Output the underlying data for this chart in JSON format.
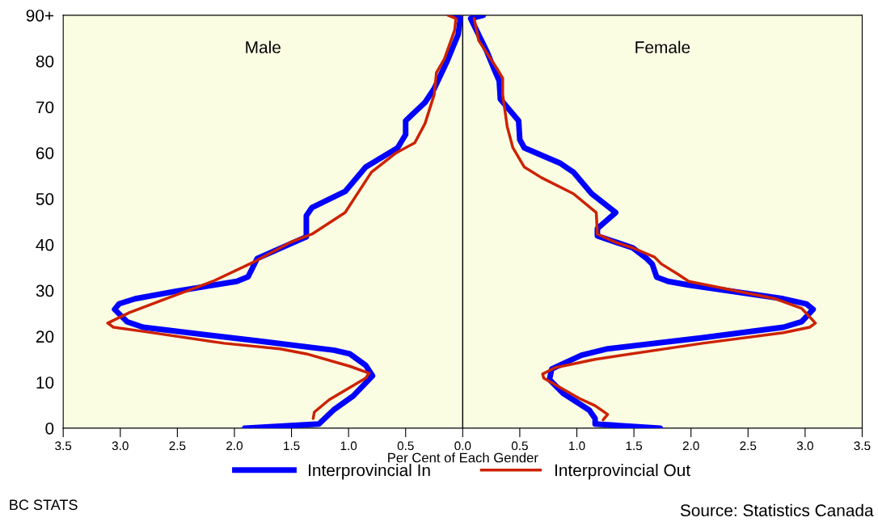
{
  "chart_data": {
    "type": "line",
    "xlabel": "Per Cent of Each Gender",
    "xlim": [
      -3.5,
      3.5
    ],
    "xticks": [
      {
        "value": -3.5,
        "label": "3.5"
      },
      {
        "value": -3.0,
        "label": "3.0"
      },
      {
        "value": -2.5,
        "label": "2.5"
      },
      {
        "value": -2.0,
        "label": "2.0"
      },
      {
        "value": -1.5,
        "label": "1.5"
      },
      {
        "value": -1.0,
        "label": "1.0"
      },
      {
        "value": -0.5,
        "label": "0.5"
      },
      {
        "value": 0,
        "label": "0.0"
      },
      {
        "value": 0.5,
        "label": "0.5"
      },
      {
        "value": 1.0,
        "label": "1.0"
      },
      {
        "value": 1.5,
        "label": "1.5"
      },
      {
        "value": 2.0,
        "label": "2.0"
      },
      {
        "value": 2.5,
        "label": "2.5"
      },
      {
        "value": 3.0,
        "label": "3.0"
      },
      {
        "value": 3.5,
        "label": "3.5"
      }
    ],
    "ylim": [
      0,
      90
    ],
    "yticks": [
      0,
      10,
      20,
      30,
      40,
      50,
      60,
      70,
      80,
      {
        "value": 90,
        "label": "90+"
      }
    ],
    "grid": false,
    "legend": "bottom",
    "marker": "none",
    "line_style": "solid",
    "ref_lines": [
      {
        "axis": "x",
        "value": 0,
        "color": "#000000"
      }
    ],
    "annotations": [
      "Male",
      "Female",
      "BC STATS",
      "Source: Statistics Canada"
    ],
    "series": [
      {
        "color": "#0000ff",
        "x": [
          -1.91,
          -1.26,
          -1.13,
          -0.96,
          -0.79,
          -0.85,
          -0.99,
          -1.13,
          -1.79,
          -2.8,
          -2.94,
          -3.05,
          -3.01,
          -2.87,
          -2.52,
          -1.98,
          -1.88,
          -1.8,
          -1.37,
          -1.37,
          -1.32,
          -1.03,
          -0.85,
          -0.57,
          -0.5,
          -0.5,
          -0.33,
          -0.25,
          -0.14,
          -0.04,
          -0.02,
          -0.07
        ],
        "values": [
          0,
          0.9,
          4,
          7,
          11.4,
          13.7,
          16.2,
          17,
          19,
          22,
          23.2,
          25.9,
          27.1,
          28.2,
          29.8,
          32,
          33,
          37,
          41.7,
          46.3,
          48.1,
          51.6,
          56.9,
          61.1,
          64,
          67,
          71,
          74,
          79.8,
          85.8,
          89.3,
          90
        ]
      },
      {
        "name": "Interprovincial In",
        "color": "#0000ff",
        "x": [
          1.73,
          1.16,
          1.16,
          1.11,
          0.88,
          0.76,
          0.78,
          1.04,
          1.27,
          2.1,
          2.81,
          2.97,
          3.07,
          3.01,
          2.81,
          1.98,
          1.8,
          1.7,
          1.66,
          1.61,
          1.49,
          1.18,
          1.18,
          1.34,
          1.13,
          0.97,
          0.85,
          0.54,
          0.5,
          0.49,
          0.33,
          0.32,
          0.28,
          0.21,
          0.07,
          0.18
        ],
        "values": [
          0,
          0.9,
          2.1,
          3.9,
          7.6,
          10.6,
          12.9,
          15.9,
          17.3,
          19.7,
          22,
          23.2,
          25.9,
          27.1,
          28.2,
          31.2,
          32,
          32.9,
          35.8,
          37,
          39.3,
          41.9,
          43.5,
          47,
          51.1,
          55.8,
          57.8,
          61.1,
          62.9,
          67,
          71.7,
          75.7,
          78,
          82.2,
          89.3,
          90
        ]
      },
      {
        "color": "#cc2200",
        "x": [
          -1.31,
          -1.3,
          -1.17,
          -0.85,
          -0.82,
          -0.99,
          -1.37,
          -1.6,
          -2.09,
          -2.8,
          -3.06,
          -3.11,
          -2.92,
          -2.57,
          -2.19,
          -1.84,
          -1.51,
          -1.32,
          -1.03,
          -0.8,
          -0.59,
          -0.42,
          -0.33,
          -0.25,
          -0.23,
          -0.16,
          -0.07,
          -0.06,
          -0.13
        ],
        "values": [
          2.1,
          3.5,
          6.2,
          10.9,
          12,
          13.5,
          16.2,
          17.3,
          18.5,
          21.1,
          22,
          22.9,
          25.2,
          28.5,
          32,
          36.1,
          40.5,
          42.3,
          47,
          55.8,
          59.9,
          62.2,
          66.4,
          72.7,
          77.5,
          80.5,
          86.8,
          89.3,
          90
        ]
      },
      {
        "name": "Interprovincial Out",
        "color": "#cc2200",
        "x": [
          1.23,
          1.27,
          1.16,
          1.02,
          0.71,
          0.7,
          0.81,
          1.16,
          2.1,
          2.81,
          3.04,
          3.09,
          2.97,
          2.74,
          1.98,
          1.89,
          1.74,
          1.68,
          1.49,
          1.34,
          1.18,
          1.17,
          0.97,
          0.69,
          0.54,
          0.44,
          0.39,
          0.35,
          0.35,
          0.31,
          0.14,
          0.1
        ],
        "values": [
          1.8,
          3,
          4.9,
          6.5,
          10.9,
          11.8,
          13.2,
          15,
          18.5,
          20.8,
          22,
          22.9,
          26.1,
          28.2,
          32,
          33.5,
          35.8,
          37.3,
          39.3,
          40.5,
          42.3,
          47,
          51.1,
          54.6,
          56.9,
          61.1,
          65.7,
          72.7,
          76.3,
          78,
          84.5,
          89.3
        ]
      }
    ]
  }
}
